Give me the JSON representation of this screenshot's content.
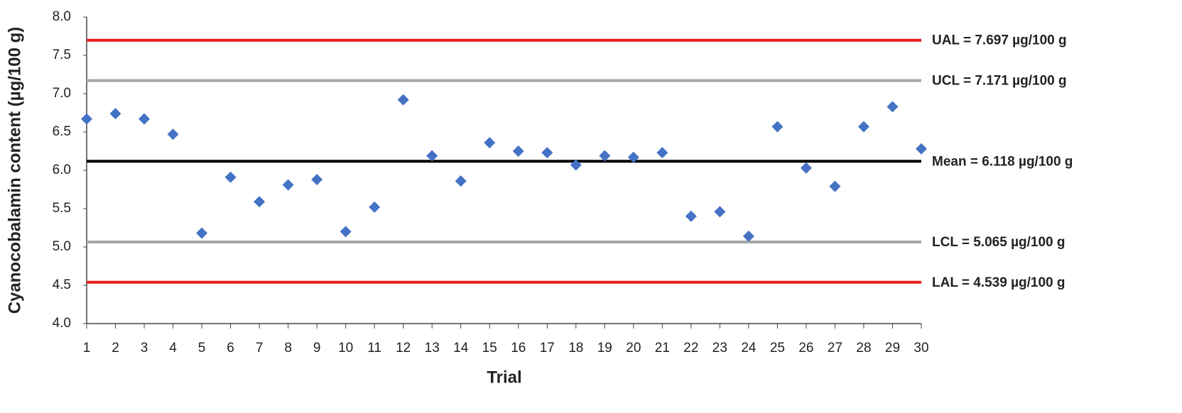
{
  "chart_data": {
    "type": "scatter",
    "x_label": "Trial",
    "y_label": "Cyanocobalamin content (µg/100 g)",
    "x": [
      1,
      2,
      3,
      4,
      5,
      6,
      7,
      8,
      9,
      10,
      11,
      12,
      13,
      14,
      15,
      16,
      17,
      18,
      19,
      20,
      21,
      22,
      23,
      24,
      25,
      26,
      27,
      28,
      29,
      30
    ],
    "values": [
      6.67,
      6.74,
      6.67,
      6.47,
      5.18,
      5.91,
      5.59,
      5.81,
      5.88,
      5.2,
      5.52,
      6.92,
      6.19,
      5.86,
      6.36,
      6.25,
      6.23,
      6.07,
      6.19,
      6.17,
      6.23,
      5.4,
      5.46,
      5.14,
      6.57,
      6.03,
      5.79,
      6.57,
      6.83,
      6.28
    ],
    "color": "#4472c4",
    "marker": "diamond",
    "xlim": [
      1,
      30
    ],
    "xticks": [
      1,
      2,
      3,
      4,
      5,
      6,
      7,
      8,
      9,
      10,
      11,
      12,
      13,
      14,
      15,
      16,
      17,
      18,
      19,
      20,
      21,
      22,
      23,
      24,
      25,
      26,
      27,
      28,
      29,
      30
    ],
    "ylim": [
      4,
      8
    ],
    "yticks": [
      {
        "value": 4,
        "label": "4.0"
      },
      {
        "value": 4.5,
        "label": "4.5"
      },
      {
        "value": 5,
        "label": "5.0"
      },
      {
        "value": 5.5,
        "label": "5.5"
      },
      {
        "value": 6,
        "label": "6.0"
      },
      {
        "value": 6.5,
        "label": "6.5"
      },
      {
        "value": 7,
        "label": "7.0"
      },
      {
        "value": 7.5,
        "label": "7.5"
      },
      {
        "value": 8,
        "label": "8.0"
      }
    ],
    "grid": false,
    "reference_lines": [
      {
        "value": 7.697,
        "label": "UAL = 7.697 µg/100 g",
        "color": "#e81c1c"
      },
      {
        "value": 7.171,
        "label": "UCL = 7.171 µg/100 g",
        "color": "#a6a6a6"
      },
      {
        "value": 6.118,
        "label": "Mean = 6.118 µg/100 g",
        "color": "#000000"
      },
      {
        "value": 5.065,
        "label": "LCL = 5.065 µg/100 g",
        "color": "#a6a6a6"
      },
      {
        "value": 4.539,
        "label": "LAL = 4.539 µg/100 g",
        "color": "#e81c1c"
      }
    ]
  }
}
